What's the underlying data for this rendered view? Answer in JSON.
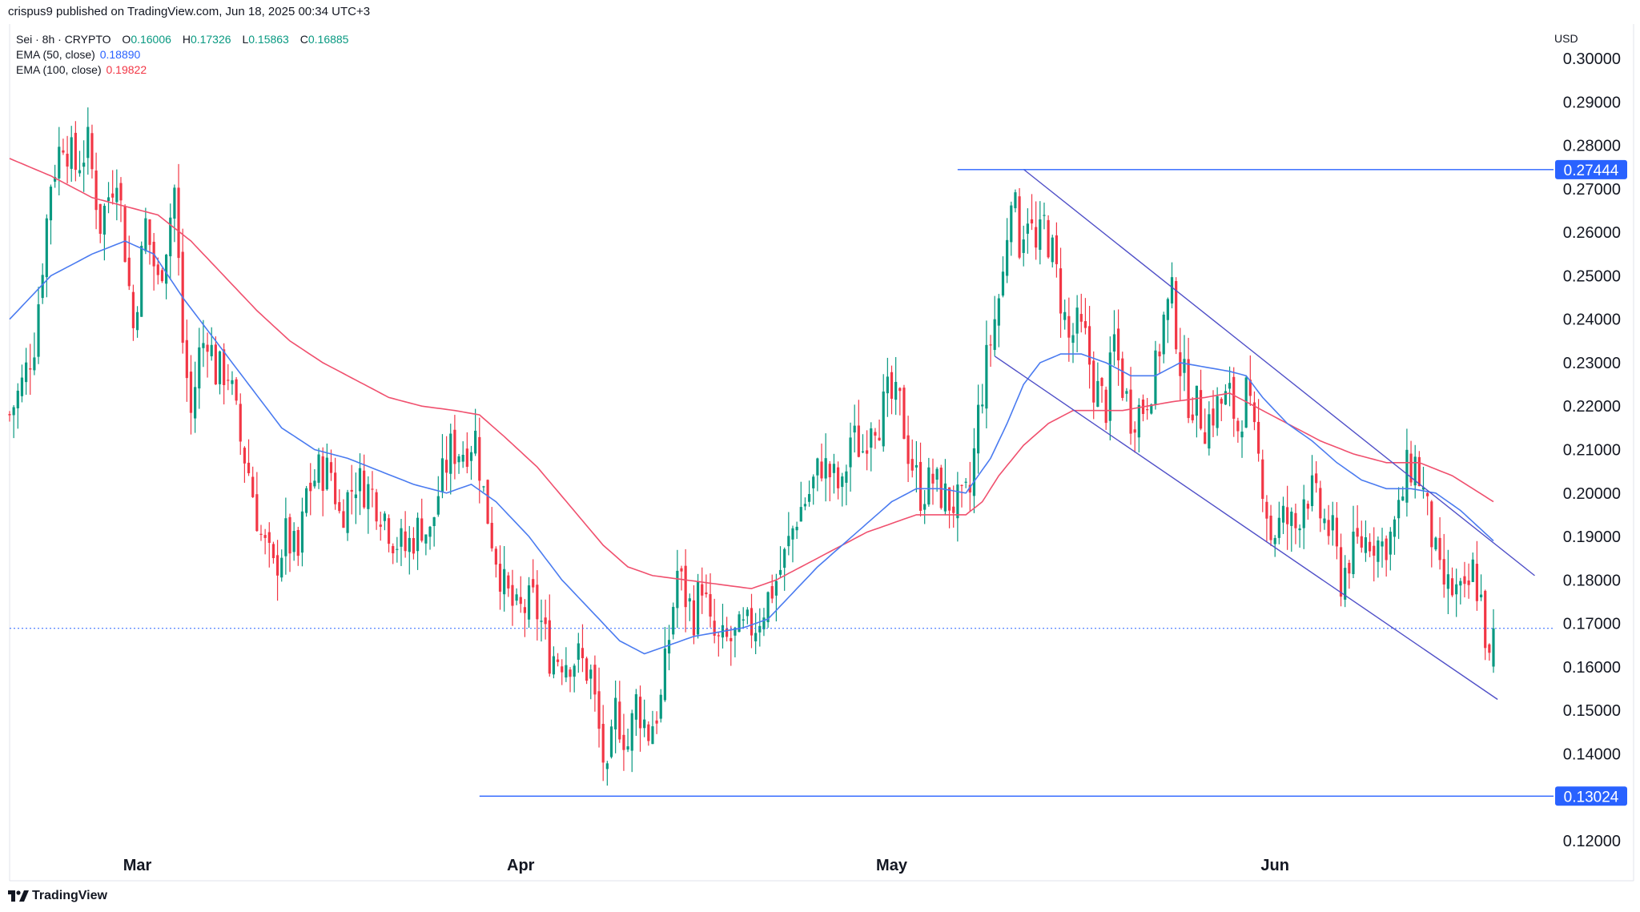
{
  "header": {
    "publisher_line": "crispus9 published on TradingView.com, Jun 18, 2025 00:34 UTC+3"
  },
  "legend": {
    "symbol": "Sei · 8h · CRYPTO",
    "open_label": "O",
    "open": "0.16006",
    "high_label": "H",
    "high": "0.17326",
    "low_label": "L",
    "low": "0.15863",
    "close_label": "C",
    "close": "0.16885",
    "ema50_label": "EMA (50, close)",
    "ema50_value": "0.18890",
    "ema100_label": "EMA (100, close)",
    "ema100_value": "0.19822"
  },
  "currency": "USD",
  "footer": {
    "brand": "TradingView",
    "logo_icon": "tradingview-logo-icon"
  },
  "colors": {
    "up": "#089981",
    "down": "#f23645",
    "ema50": "#4a7bf0",
    "ema100": "#f0506e",
    "hline": "#2962ff",
    "channel": "#5050c8",
    "price_line": "#2962ff"
  },
  "chart_data": {
    "type": "candlestick",
    "y_axis": {
      "min": 0.115,
      "max": 0.305,
      "ticks": [
        "0.30000",
        "0.29000",
        "0.28000",
        "0.27000",
        "0.26000",
        "0.25000",
        "0.24000",
        "0.23000",
        "0.22000",
        "0.21000",
        "0.20000",
        "0.19000",
        "0.18000",
        "0.17000",
        "0.16000",
        "0.15000",
        "0.14000",
        "0.13000",
        "0.12000"
      ]
    },
    "x_axis": {
      "labels": [
        {
          "text": "Mar",
          "bar": 31
        },
        {
          "text": "Apr",
          "bar": 124
        },
        {
          "text": "May",
          "bar": 214
        },
        {
          "text": "Jun",
          "bar": 307
        }
      ],
      "total_bars": 360
    },
    "horizontal_levels": [
      {
        "value": 0.27444,
        "label": "0.27444",
        "from_bar": 230
      },
      {
        "value": 0.13024,
        "label": "0.13024",
        "from_bar": 114
      }
    ],
    "current_price": 0.16885,
    "channel": {
      "upper": [
        {
          "bar": 246,
          "value": 0.2745
        },
        {
          "bar": 370,
          "value": 0.181
        }
      ],
      "lower": [
        {
          "bar": 239,
          "value": 0.2315
        },
        {
          "bar": 361,
          "value": 0.1525
        }
      ]
    },
    "price_path": [
      [
        0,
        0.218
      ],
      [
        3,
        0.225
      ],
      [
        6,
        0.235
      ],
      [
        10,
        0.272
      ],
      [
        13,
        0.282
      ],
      [
        16,
        0.275
      ],
      [
        19,
        0.28
      ],
      [
        22,
        0.262
      ],
      [
        26,
        0.275
      ],
      [
        30,
        0.238
      ],
      [
        33,
        0.262
      ],
      [
        36,
        0.248
      ],
      [
        38,
        0.258
      ],
      [
        40,
        0.27
      ],
      [
        42,
        0.235
      ],
      [
        44,
        0.218
      ],
      [
        46,
        0.232
      ],
      [
        48,
        0.237
      ],
      [
        50,
        0.228
      ],
      [
        53,
        0.228
      ],
      [
        56,
        0.212
      ],
      [
        58,
        0.205
      ],
      [
        61,
        0.19
      ],
      [
        64,
        0.182
      ],
      [
        67,
        0.19
      ],
      [
        70,
        0.185
      ],
      [
        72,
        0.2
      ],
      [
        75,
        0.205
      ],
      [
        78,
        0.205
      ],
      [
        80,
        0.195
      ],
      [
        84,
        0.203
      ],
      [
        88,
        0.2
      ],
      [
        91,
        0.195
      ],
      [
        93,
        0.19
      ],
      [
        96,
        0.187
      ],
      [
        100,
        0.193
      ],
      [
        102,
        0.19
      ],
      [
        104,
        0.2
      ],
      [
        107,
        0.21
      ],
      [
        110,
        0.21
      ],
      [
        113,
        0.213
      ],
      [
        115,
        0.2
      ],
      [
        117,
        0.19
      ],
      [
        120,
        0.178
      ],
      [
        123,
        0.172
      ],
      [
        127,
        0.175
      ],
      [
        129,
        0.17
      ],
      [
        131,
        0.163
      ],
      [
        135,
        0.162
      ],
      [
        138,
        0.162
      ],
      [
        141,
        0.158
      ],
      [
        143,
        0.145
      ],
      [
        145,
        0.133
      ],
      [
        147,
        0.15
      ],
      [
        150,
        0.142
      ],
      [
        152,
        0.152
      ],
      [
        155,
        0.145
      ],
      [
        158,
        0.152
      ],
      [
        160,
        0.167
      ],
      [
        162,
        0.182
      ],
      [
        164,
        0.176
      ],
      [
        166,
        0.172
      ],
      [
        168,
        0.18
      ],
      [
        170,
        0.168
      ],
      [
        172,
        0.165
      ],
      [
        175,
        0.166
      ],
      [
        178,
        0.168
      ],
      [
        181,
        0.17
      ],
      [
        184,
        0.176
      ],
      [
        186,
        0.18
      ],
      [
        188,
        0.185
      ],
      [
        191,
        0.195
      ],
      [
        194,
        0.2
      ],
      [
        197,
        0.207
      ],
      [
        200,
        0.203
      ],
      [
        202,
        0.2
      ],
      [
        204,
        0.213
      ],
      [
        207,
        0.21
      ],
      [
        209,
        0.218
      ],
      [
        211,
        0.217
      ],
      [
        213,
        0.222
      ],
      [
        216,
        0.22
      ],
      [
        218,
        0.21
      ],
      [
        221,
        0.2
      ],
      [
        224,
        0.203
      ],
      [
        226,
        0.2
      ],
      [
        228,
        0.198
      ],
      [
        231,
        0.197
      ],
      [
        233,
        0.2
      ],
      [
        235,
        0.218
      ],
      [
        237,
        0.23
      ],
      [
        239,
        0.24
      ],
      [
        241,
        0.25
      ],
      [
        243,
        0.271
      ],
      [
        245,
        0.258
      ],
      [
        247,
        0.265
      ],
      [
        249,
        0.255
      ],
      [
        251,
        0.262
      ],
      [
        253,
        0.255
      ],
      [
        255,
        0.245
      ],
      [
        257,
        0.235
      ],
      [
        259,
        0.238
      ],
      [
        261,
        0.235
      ],
      [
        263,
        0.225
      ],
      [
        266,
        0.22
      ],
      [
        268,
        0.235
      ],
      [
        270,
        0.225
      ],
      [
        272,
        0.218
      ],
      [
        275,
        0.22
      ],
      [
        278,
        0.228
      ],
      [
        280,
        0.24
      ],
      [
        282,
        0.245
      ],
      [
        284,
        0.23
      ],
      [
        286,
        0.222
      ],
      [
        288,
        0.22
      ],
      [
        290,
        0.216
      ],
      [
        293,
        0.22
      ],
      [
        296,
        0.222
      ],
      [
        298,
        0.215
      ],
      [
        300,
        0.223
      ],
      [
        302,
        0.212
      ],
      [
        304,
        0.203
      ],
      [
        306,
        0.19
      ],
      [
        309,
        0.194
      ],
      [
        312,
        0.192
      ],
      [
        314,
        0.2
      ],
      [
        316,
        0.2
      ],
      [
        318,
        0.195
      ],
      [
        321,
        0.19
      ],
      [
        323,
        0.18
      ],
      [
        325,
        0.185
      ],
      [
        327,
        0.188
      ],
      [
        330,
        0.19
      ],
      [
        333,
        0.188
      ],
      [
        335,
        0.19
      ],
      [
        337,
        0.195
      ],
      [
        339,
        0.205
      ],
      [
        341,
        0.207
      ],
      [
        343,
        0.2
      ],
      [
        345,
        0.19
      ],
      [
        347,
        0.18
      ],
      [
        349,
        0.178
      ],
      [
        351,
        0.177
      ],
      [
        353,
        0.175
      ],
      [
        355,
        0.182
      ],
      [
        357,
        0.175
      ],
      [
        359,
        0.16
      ],
      [
        360,
        0.16885
      ]
    ],
    "ema50_path": [
      [
        0,
        0.24
      ],
      [
        10,
        0.25
      ],
      [
        20,
        0.255
      ],
      [
        28,
        0.258
      ],
      [
        35,
        0.255
      ],
      [
        42,
        0.245
      ],
      [
        50,
        0.235
      ],
      [
        58,
        0.225
      ],
      [
        66,
        0.215
      ],
      [
        74,
        0.21
      ],
      [
        82,
        0.208
      ],
      [
        90,
        0.205
      ],
      [
        98,
        0.202
      ],
      [
        106,
        0.2
      ],
      [
        112,
        0.202
      ],
      [
        118,
        0.198
      ],
      [
        126,
        0.19
      ],
      [
        134,
        0.18
      ],
      [
        142,
        0.172
      ],
      [
        148,
        0.166
      ],
      [
        154,
        0.163
      ],
      [
        160,
        0.165
      ],
      [
        166,
        0.167
      ],
      [
        172,
        0.168
      ],
      [
        178,
        0.169
      ],
      [
        184,
        0.171
      ],
      [
        190,
        0.177
      ],
      [
        196,
        0.183
      ],
      [
        202,
        0.188
      ],
      [
        208,
        0.193
      ],
      [
        214,
        0.198
      ],
      [
        220,
        0.201
      ],
      [
        226,
        0.201
      ],
      [
        232,
        0.2
      ],
      [
        238,
        0.208
      ],
      [
        242,
        0.216
      ],
      [
        246,
        0.225
      ],
      [
        250,
        0.23
      ],
      [
        255,
        0.232
      ],
      [
        260,
        0.232
      ],
      [
        266,
        0.23
      ],
      [
        272,
        0.227
      ],
      [
        278,
        0.227
      ],
      [
        284,
        0.23
      ],
      [
        290,
        0.229
      ],
      [
        296,
        0.228
      ],
      [
        300,
        0.227
      ],
      [
        304,
        0.222
      ],
      [
        310,
        0.216
      ],
      [
        316,
        0.212
      ],
      [
        322,
        0.207
      ],
      [
        328,
        0.203
      ],
      [
        334,
        0.201
      ],
      [
        340,
        0.201
      ],
      [
        346,
        0.2
      ],
      [
        352,
        0.196
      ],
      [
        360,
        0.189
      ]
    ],
    "ema100_path": [
      [
        0,
        0.277
      ],
      [
        10,
        0.273
      ],
      [
        20,
        0.268
      ],
      [
        28,
        0.266
      ],
      [
        36,
        0.264
      ],
      [
        44,
        0.258
      ],
      [
        52,
        0.25
      ],
      [
        60,
        0.242
      ],
      [
        68,
        0.235
      ],
      [
        76,
        0.23
      ],
      [
        84,
        0.226
      ],
      [
        92,
        0.222
      ],
      [
        100,
        0.22
      ],
      [
        108,
        0.219
      ],
      [
        114,
        0.218
      ],
      [
        120,
        0.213
      ],
      [
        128,
        0.206
      ],
      [
        136,
        0.197
      ],
      [
        144,
        0.188
      ],
      [
        150,
        0.183
      ],
      [
        156,
        0.181
      ],
      [
        164,
        0.18
      ],
      [
        172,
        0.179
      ],
      [
        180,
        0.178
      ],
      [
        186,
        0.18
      ],
      [
        192,
        0.183
      ],
      [
        200,
        0.187
      ],
      [
        208,
        0.191
      ],
      [
        214,
        0.193
      ],
      [
        220,
        0.195
      ],
      [
        226,
        0.195
      ],
      [
        232,
        0.195
      ],
      [
        236,
        0.198
      ],
      [
        240,
        0.204
      ],
      [
        246,
        0.211
      ],
      [
        252,
        0.216
      ],
      [
        258,
        0.219
      ],
      [
        264,
        0.219
      ],
      [
        270,
        0.219
      ],
      [
        276,
        0.22
      ],
      [
        282,
        0.221
      ],
      [
        290,
        0.222
      ],
      [
        296,
        0.223
      ],
      [
        302,
        0.22
      ],
      [
        310,
        0.216
      ],
      [
        318,
        0.212
      ],
      [
        326,
        0.209
      ],
      [
        334,
        0.207
      ],
      [
        342,
        0.207
      ],
      [
        350,
        0.204
      ],
      [
        360,
        0.198
      ]
    ]
  }
}
